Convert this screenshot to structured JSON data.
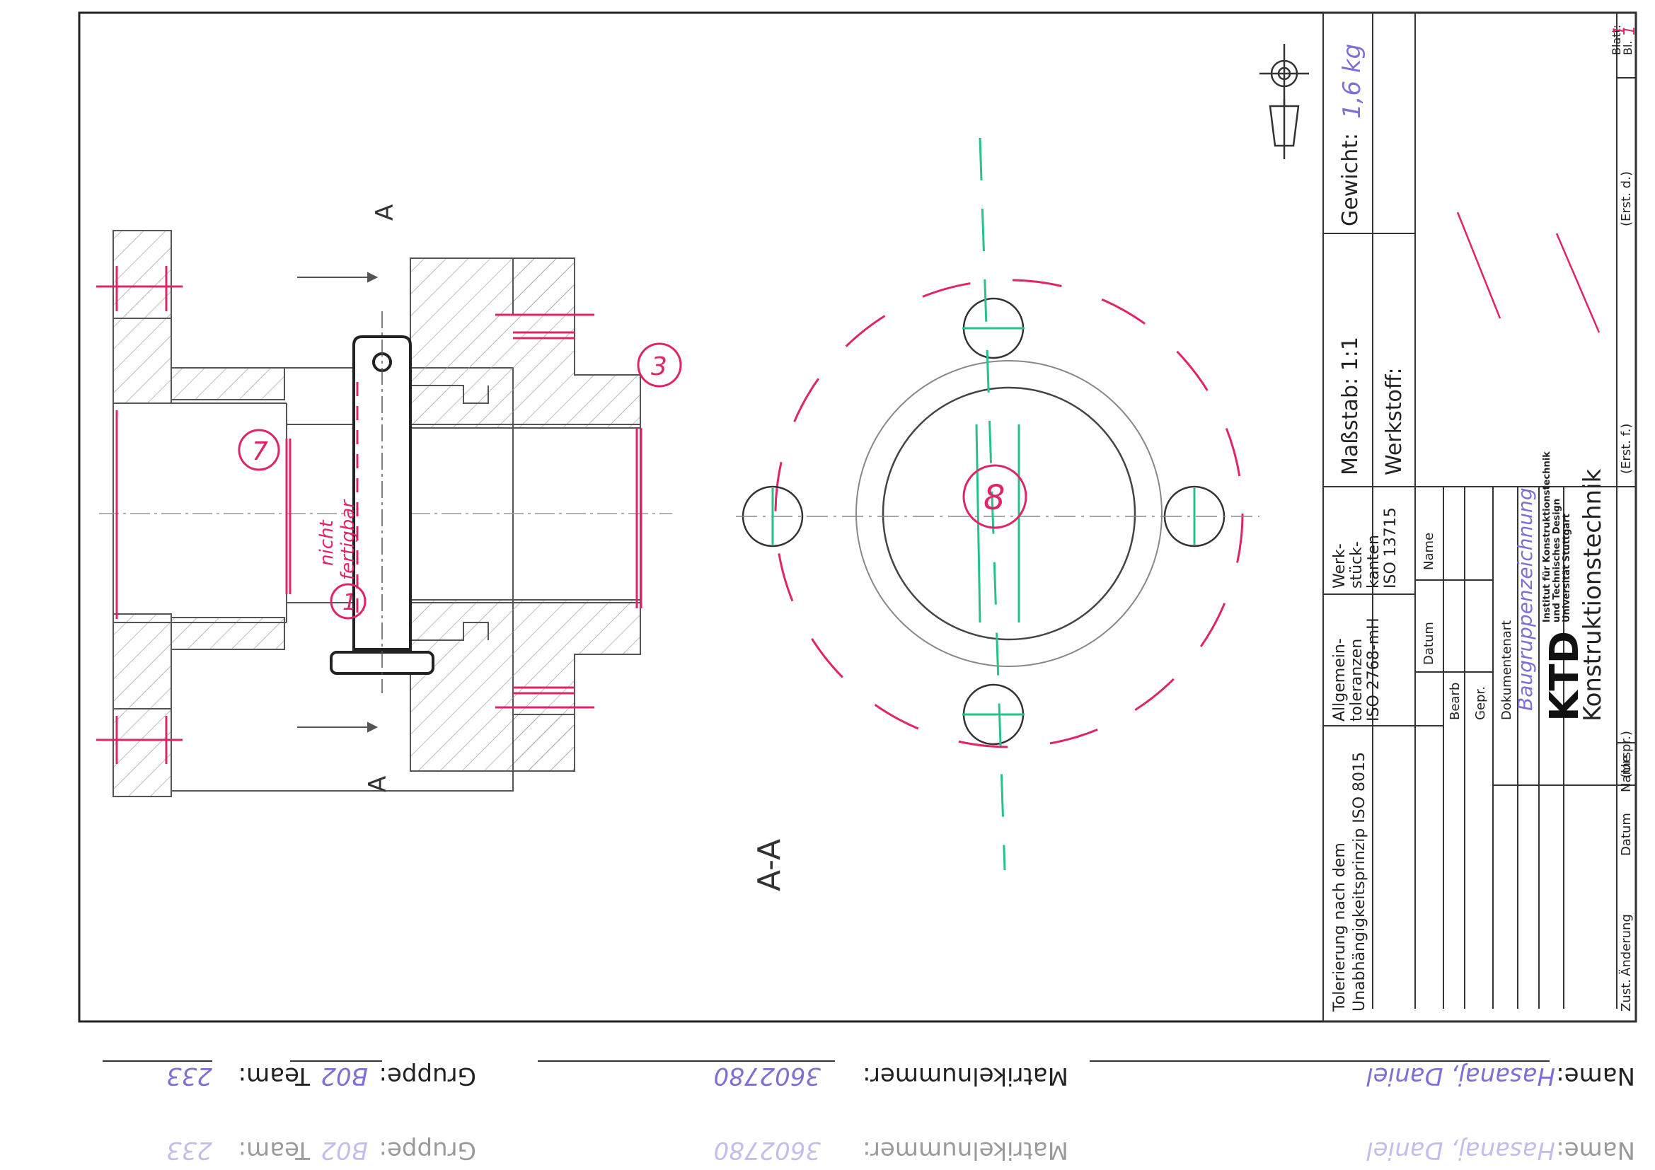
{
  "sheet": {
    "section_label_left": "A",
    "section_label_right": "A",
    "section_title": "A-A",
    "geometry_symbol": "projection-method-symbol"
  },
  "annotations": {
    "item_7": "7",
    "item_3": "3",
    "item_1": "1",
    "item_8": "8",
    "note_line1": "nicht",
    "note_line2": "fertigbar"
  },
  "title_block": {
    "tolerance_note_line1": "Tolerierung nach dem",
    "tolerance_note_line2": "Unabhängigkeitsprinzip ISO 8015",
    "general_tol_line1": "Allgemein-",
    "general_tol_line2": "toleranzen",
    "general_tol_line3": "ISO 2768-mH",
    "edges_line1": "Werk-",
    "edges_line2": "stück-",
    "edges_line3": "kanten",
    "edges_line4": "ISO 13715",
    "scale": "Maßstab: 1:1",
    "weight_label": "Gewicht:",
    "weight_value": "1,6 kg",
    "material_label": "Werkstoff:",
    "col_date": "Datum",
    "col_name": "Name",
    "row_bearb": "Bearb",
    "row_gepr": "Gepr.",
    "doc_type_label": "Dokumentenart",
    "doc_type_value": "Baugruppenzeichnung",
    "institute_line1": "Institut für Konstruktionstechnik",
    "institute_line2": "und Technisches Design",
    "institute_line3": "Universität Stuttgart",
    "logo_text": "KTD",
    "dept": "Konstruktionstechnik",
    "urspr": "(Urspr.)",
    "erst_f": "(Erst. f.)",
    "erst_d": "(Erst. d.)",
    "blatt_label": "Blatt:",
    "blatt_value": "1",
    "bl_label": "Bl.",
    "bl_value": "1",
    "rev_zust": "Zust.",
    "rev_aenderung": "Änderung",
    "rev_datum": "Datum",
    "rev_name": "Name"
  },
  "footer": {
    "name_label": "Name:",
    "name_value": "Hasanaj, Daniel",
    "matrikel_label": "Matrikelnummer:",
    "matrikel_value": "3602780",
    "gruppe_label": "Gruppe:",
    "gruppe_value": "B02",
    "team_label": "Team:",
    "team_value": "233"
  },
  "colors": {
    "pencil": "#3a3a3a",
    "pink_markup": "#e0246a",
    "green_markup": "#27c28a",
    "blue_ink": "#7d6fd6"
  }
}
